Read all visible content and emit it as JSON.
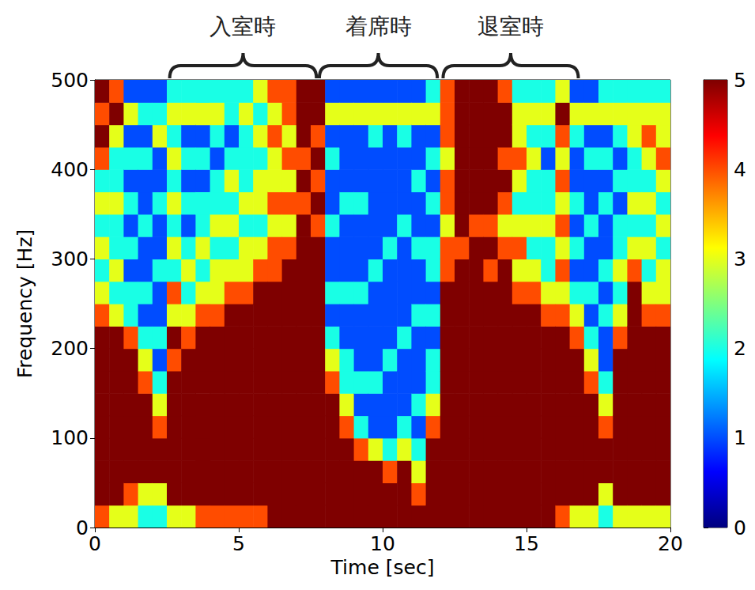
{
  "chart_data": {
    "type": "heatmap",
    "x_label": "Time [sec]",
    "y_label": "Frequency [Hz]",
    "xlim": [
      0,
      20
    ],
    "xticks": [
      0,
      5,
      10,
      15,
      20
    ],
    "ylim": [
      0,
      500
    ],
    "yticks": [
      0,
      100,
      200,
      300,
      400,
      500
    ],
    "annotations": [
      {
        "text": "入室時",
        "x_range": [
          2.6,
          7.7
        ]
      },
      {
        "text": "着席時",
        "x_range": [
          7.8,
          11.9
        ]
      },
      {
        "text": "退室時",
        "x_range": [
          12.1,
          16.8
        ]
      }
    ],
    "colorbar": {
      "range": [
        0,
        5
      ],
      "ticks": [
        0,
        1,
        2,
        3,
        4,
        5
      ]
    },
    "cells": {
      "x_edges": [
        0,
        0.5,
        1,
        1.5,
        2,
        2.5,
        3,
        3.5,
        4,
        4.5,
        5,
        5.5,
        6,
        6.5,
        7,
        7.5,
        8,
        8.5,
        9,
        9.5,
        10,
        10.5,
        11,
        11.5,
        12,
        12.5,
        13,
        13.5,
        14,
        14.5,
        15,
        15.5,
        16,
        16.5,
        17,
        17.5,
        18,
        18.5,
        19,
        19.5,
        20
      ],
      "y_edges": [
        0,
        25,
        50,
        75,
        100,
        125,
        150,
        175,
        200,
        225,
        250,
        275,
        300,
        325,
        350,
        375,
        400,
        425,
        450,
        475,
        500
      ],
      "values": [
        [
          4,
          5,
          5,
          5,
          5,
          5,
          5,
          5,
          5,
          4,
          3,
          2,
          3,
          2,
          3,
          2,
          4,
          5,
          4,
          5
        ],
        [
          3,
          5,
          5,
          5,
          5,
          5,
          5,
          5,
          5,
          3,
          2,
          3,
          2,
          2,
          3,
          2,
          2,
          3,
          5,
          4
        ],
        [
          3,
          4,
          5,
          5,
          5,
          5,
          5,
          5,
          4,
          2,
          2,
          1,
          2,
          1,
          2,
          1,
          2,
          1,
          3,
          1
        ],
        [
          2,
          3,
          5,
          5,
          5,
          5,
          4,
          3,
          2,
          1,
          2,
          1,
          1,
          2,
          1,
          1,
          2,
          1,
          2,
          1
        ],
        [
          2,
          3,
          5,
          5,
          4,
          3,
          2,
          1,
          2,
          1,
          1,
          2,
          1,
          1,
          2,
          1,
          1,
          3,
          2,
          1
        ],
        [
          3,
          5,
          5,
          5,
          5,
          5,
          5,
          4,
          5,
          3,
          4,
          2,
          3,
          2,
          3,
          2,
          3,
          2,
          3,
          2
        ],
        [
          3,
          5,
          5,
          5,
          5,
          5,
          5,
          5,
          4,
          3,
          2,
          3,
          2,
          1,
          2,
          1,
          2,
          1,
          3,
          2
        ],
        [
          4,
          5,
          5,
          5,
          5,
          5,
          5,
          5,
          5,
          4,
          3,
          2,
          3,
          2,
          2,
          1,
          2,
          1,
          3,
          2
        ],
        [
          4,
          5,
          5,
          5,
          5,
          5,
          5,
          5,
          5,
          4,
          3,
          3,
          2,
          3,
          2,
          2,
          1,
          2,
          3,
          2
        ],
        [
          4,
          5,
          5,
          5,
          5,
          5,
          5,
          5,
          5,
          5,
          4,
          3,
          2,
          3,
          2,
          3,
          2,
          1,
          2,
          2
        ],
        [
          4,
          5,
          5,
          5,
          5,
          5,
          5,
          5,
          5,
          5,
          4,
          3,
          3,
          2,
          3,
          2,
          2,
          2,
          3,
          2
        ],
        [
          4,
          5,
          5,
          5,
          5,
          5,
          5,
          5,
          5,
          5,
          5,
          4,
          3,
          2,
          3,
          3,
          2,
          3,
          2,
          3
        ],
        [
          5,
          5,
          5,
          5,
          5,
          5,
          5,
          5,
          5,
          5,
          5,
          4,
          4,
          3,
          4,
          3,
          3,
          4,
          3,
          4
        ],
        [
          5,
          5,
          5,
          5,
          5,
          5,
          5,
          5,
          5,
          5,
          5,
          5,
          4,
          3,
          4,
          3,
          4,
          3,
          4,
          4
        ],
        [
          5,
          5,
          5,
          5,
          5,
          5,
          5,
          5,
          5,
          5,
          5,
          5,
          5,
          5,
          4,
          5,
          4,
          5,
          5,
          5
        ],
        [
          5,
          5,
          5,
          5,
          5,
          5,
          5,
          5,
          5,
          5,
          5,
          5,
          5,
          4,
          5,
          4,
          5,
          4,
          5,
          5
        ],
        [
          5,
          5,
          5,
          5,
          5,
          5,
          4,
          3,
          2,
          1,
          2,
          1,
          1,
          2,
          1,
          1,
          2,
          1,
          3,
          1
        ],
        [
          5,
          5,
          5,
          5,
          4,
          3,
          2,
          2,
          1,
          1,
          2,
          1,
          1,
          1,
          2,
          1,
          1,
          1,
          3,
          1
        ],
        [
          5,
          5,
          5,
          4,
          2,
          1,
          2,
          1,
          1,
          1,
          2,
          1,
          1,
          1,
          2,
          1,
          1,
          1,
          3,
          1
        ],
        [
          5,
          5,
          5,
          3,
          1,
          1,
          2,
          1,
          1,
          1,
          1,
          2,
          1,
          1,
          1,
          1,
          1,
          2,
          3,
          1
        ],
        [
          5,
          5,
          4,
          2,
          1,
          1,
          1,
          2,
          1,
          1,
          1,
          1,
          2,
          1,
          1,
          1,
          1,
          1,
          3,
          1
        ],
        [
          5,
          5,
          5,
          3,
          2,
          1,
          1,
          1,
          2,
          1,
          1,
          1,
          1,
          2,
          1,
          1,
          1,
          2,
          3,
          1
        ],
        [
          5,
          4,
          3,
          2,
          1,
          2,
          1,
          1,
          1,
          2,
          1,
          1,
          2,
          1,
          1,
          2,
          1,
          1,
          3,
          1
        ],
        [
          5,
          5,
          5,
          5,
          4,
          3,
          2,
          2,
          1,
          2,
          1,
          2,
          2,
          1,
          2,
          1,
          2,
          1,
          3,
          2
        ],
        [
          5,
          5,
          5,
          5,
          5,
          5,
          5,
          5,
          5,
          5,
          5,
          4,
          4,
          3,
          4,
          4,
          3,
          4,
          4,
          4
        ],
        [
          5,
          5,
          5,
          5,
          5,
          5,
          5,
          5,
          5,
          5,
          5,
          5,
          4,
          5,
          5,
          5,
          5,
          5,
          5,
          5
        ],
        [
          5,
          5,
          5,
          5,
          5,
          5,
          5,
          5,
          5,
          5,
          5,
          5,
          5,
          4,
          5,
          5,
          5,
          5,
          5,
          5
        ],
        [
          5,
          5,
          5,
          5,
          5,
          5,
          5,
          5,
          5,
          5,
          5,
          4,
          5,
          4,
          5,
          5,
          5,
          5,
          5,
          5
        ],
        [
          5,
          5,
          5,
          5,
          5,
          5,
          5,
          5,
          5,
          5,
          5,
          5,
          4,
          3,
          4,
          5,
          4,
          5,
          5,
          4
        ],
        [
          5,
          5,
          5,
          5,
          5,
          5,
          5,
          5,
          5,
          5,
          4,
          3,
          4,
          3,
          2,
          3,
          4,
          3,
          3,
          2
        ],
        [
          5,
          5,
          5,
          5,
          5,
          5,
          5,
          5,
          5,
          5,
          4,
          3,
          2,
          3,
          2,
          2,
          3,
          2,
          3,
          2
        ],
        [
          5,
          5,
          5,
          5,
          5,
          5,
          5,
          5,
          5,
          4,
          3,
          2,
          2,
          3,
          2,
          2,
          1,
          2,
          3,
          2
        ],
        [
          4,
          5,
          5,
          5,
          5,
          5,
          5,
          5,
          5,
          4,
          3,
          4,
          3,
          4,
          3,
          4,
          3,
          4,
          5,
          3
        ],
        [
          3,
          5,
          5,
          5,
          5,
          5,
          5,
          5,
          4,
          3,
          2,
          1,
          2,
          1,
          2,
          1,
          1,
          2,
          3,
          1
        ],
        [
          3,
          5,
          5,
          5,
          5,
          5,
          4,
          3,
          2,
          1,
          2,
          1,
          1,
          2,
          1,
          1,
          2,
          1,
          3,
          1
        ],
        [
          2,
          3,
          5,
          5,
          4,
          3,
          2,
          1,
          1,
          2,
          1,
          2,
          1,
          1,
          2,
          1,
          2,
          1,
          3,
          2
        ],
        [
          3,
          5,
          5,
          5,
          5,
          5,
          5,
          5,
          4,
          3,
          2,
          3,
          2,
          2,
          1,
          2,
          1,
          2,
          3,
          2
        ],
        [
          3,
          5,
          5,
          5,
          5,
          5,
          5,
          5,
          5,
          5,
          5,
          4,
          3,
          2,
          3,
          2,
          2,
          3,
          3,
          2
        ],
        [
          3,
          5,
          5,
          5,
          5,
          5,
          5,
          5,
          5,
          4,
          3,
          2,
          3,
          2,
          3,
          2,
          3,
          4,
          3,
          2
        ],
        [
          3,
          5,
          5,
          5,
          5,
          5,
          5,
          5,
          5,
          4,
          3,
          3,
          2,
          3,
          2,
          3,
          4,
          3,
          3,
          2
        ]
      ]
    }
  }
}
